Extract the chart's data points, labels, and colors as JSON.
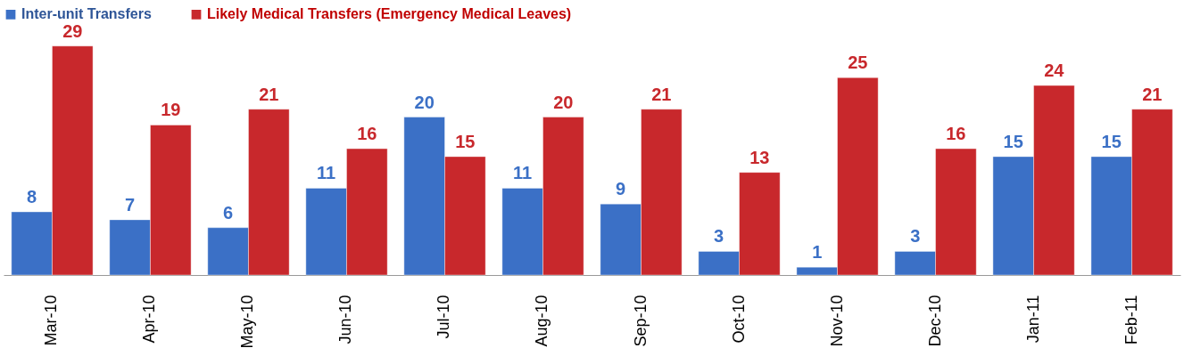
{
  "chart_data": {
    "type": "bar",
    "categories": [
      "Mar-10",
      "Apr-10",
      "May-10",
      "Jun-10",
      "Jul-10",
      "Aug-10",
      "Sep-10",
      "Oct-10",
      "Nov-10",
      "Dec-10",
      "Jan-11",
      "Feb-11"
    ],
    "series": [
      {
        "name": "Inter-unit Transfers",
        "color": "#3b70c6",
        "values": [
          8,
          7,
          6,
          11,
          20,
          11,
          9,
          3,
          1,
          3,
          15,
          15
        ]
      },
      {
        "name": "Likely Medical Transfers (Emergency Medical Leaves)",
        "color": "#c8282c",
        "values": [
          29,
          19,
          21,
          16,
          15,
          20,
          21,
          13,
          25,
          16,
          24,
          21
        ]
      }
    ],
    "data_labels": true,
    "legend": "top",
    "grid": false
  }
}
